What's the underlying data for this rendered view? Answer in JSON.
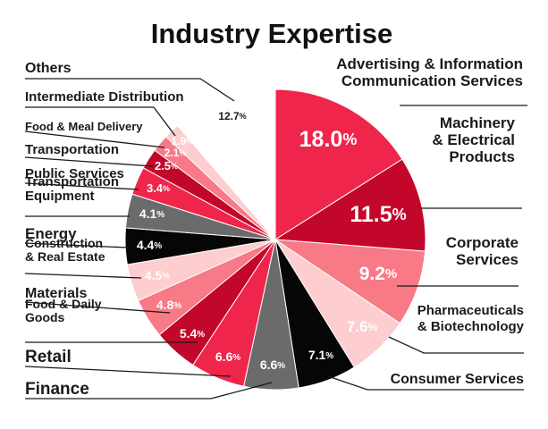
{
  "chart_data": {
    "type": "pie",
    "title": "Industry Expertise",
    "slices": [
      {
        "label": "Advertising & Information Communication Services",
        "lines": [
          "Advertising & Information",
          "Communication Services"
        ],
        "value": 18.0,
        "value_label": "18.0%",
        "color": "#f0254b",
        "text_color": "#ffffff"
      },
      {
        "label": "Machinery & Electrical Products",
        "lines": [
          "Machinery",
          "& Electrical",
          "Products"
        ],
        "value": 11.5,
        "value_label": "11.5%",
        "color": "#c3072b",
        "text_color": "#ffffff"
      },
      {
        "label": "Corporate Services",
        "lines": [
          "Corporate",
          "Services"
        ],
        "value": 9.2,
        "value_label": "9.2%",
        "color": "#f77a86",
        "text_color": "#ffffff"
      },
      {
        "label": "Pharmaceuticals & Biotechnology",
        "lines": [
          "Pharmaceuticals",
          "& Biotechnology"
        ],
        "value": 7.6,
        "value_label": "7.6%",
        "color": "#fdcdd0",
        "text_color": "#ffffff"
      },
      {
        "label": "Consumer Services",
        "lines": [
          "Consumer Services"
        ],
        "value": 7.1,
        "value_label": "7.1%",
        "color": "#060606",
        "text_color": "#ffffff"
      },
      {
        "label": "Finance",
        "lines": [
          "Finance"
        ],
        "value": 6.6,
        "value_label": "6.6%",
        "color": "#6b6b6b",
        "text_color": "#ffffff"
      },
      {
        "label": "Retail",
        "lines": [
          "Retail"
        ],
        "value": 6.6,
        "value_label": "6.6%",
        "color": "#f0254b",
        "text_color": "#ffffff"
      },
      {
        "label": "Food & Daily Goods",
        "lines": [
          "Food & Daily",
          "Goods"
        ],
        "value": 5.4,
        "value_label": "5.4%",
        "color": "#c3072b",
        "text_color": "#ffffff"
      },
      {
        "label": "Materials",
        "lines": [
          "Materials"
        ],
        "value": 4.8,
        "value_label": "4.8%",
        "color": "#f77a86",
        "text_color": "#ffffff"
      },
      {
        "label": "Construction & Real Estate",
        "lines": [
          "Construction",
          "& Real Estate"
        ],
        "value": 4.5,
        "value_label": "4.5%",
        "color": "#fdcdd0",
        "text_color": "#ffffff"
      },
      {
        "label": "Energy",
        "lines": [
          "Energy"
        ],
        "value": 4.4,
        "value_label": "4.4%",
        "color": "#060606",
        "text_color": "#ffffff"
      },
      {
        "label": "Transportation Equipment",
        "lines": [
          "Transportation",
          "Equipment"
        ],
        "value": 4.1,
        "value_label": "4.1%",
        "color": "#6b6b6b",
        "text_color": "#ffffff"
      },
      {
        "label": "Public Services",
        "lines": [
          "Public Services"
        ],
        "value": 3.4,
        "value_label": "3.4%",
        "color": "#f0254b",
        "text_color": "#ffffff"
      },
      {
        "label": "Transportation",
        "lines": [
          "Transportation"
        ],
        "value": 2.5,
        "value_label": "2.5%",
        "color": "#c3072b",
        "text_color": "#ffffff"
      },
      {
        "label": "Food & Meal Delivery",
        "lines": [
          "Food & Meal Delivery"
        ],
        "value": 2.1,
        "value_label": "2.1%",
        "color": "#f77a86",
        "text_color": "#ffffff"
      },
      {
        "label": "Intermediate Distribution",
        "lines": [
          "Intermediate Distribution"
        ],
        "value": 1.9,
        "value_label": "1.9%",
        "color": "#fdcdd0",
        "text_color": "#ffffff"
      },
      {
        "label": "Others",
        "lines": [
          "Others"
        ],
        "value": 12.7,
        "value_label": "12.7%",
        "color": "#ffffff",
        "text_color": "#1a1a1a"
      }
    ]
  }
}
